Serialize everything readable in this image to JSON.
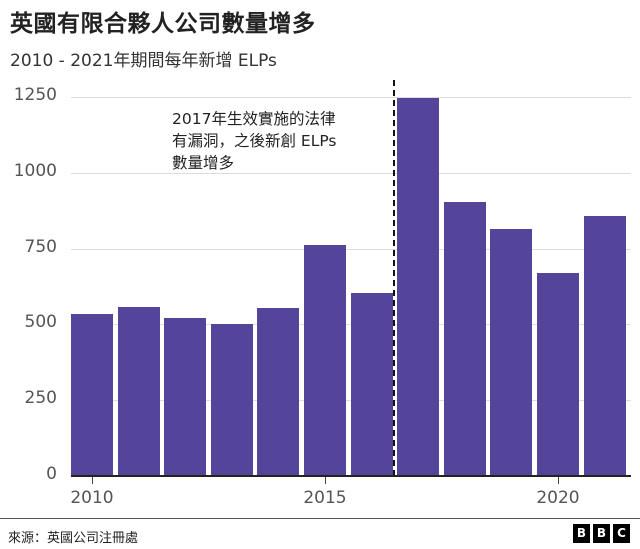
{
  "header": {
    "title": "英國有限合夥人公司數量增多",
    "subtitle": "2010 - 2021年期間每年新增 ELPs"
  },
  "annotation": {
    "lines": [
      "2017年生效實施的法律",
      "有漏洞，之後新創 ELPs",
      "數量增多"
    ]
  },
  "footer": {
    "source": "來源：英國公司注冊處",
    "logo": [
      "B",
      "B",
      "C"
    ]
  },
  "colors": {
    "bar": "#55459a",
    "marker": "#111111",
    "grid": "#dcdcdc"
  },
  "chart_data": {
    "type": "bar",
    "title": "英國有限合夥人公司數量增多",
    "subtitle": "2010 - 2021年期間每年新增 ELPs",
    "xlabel": "",
    "ylabel": "",
    "categories": [
      "2010",
      "2011",
      "2012",
      "2013",
      "2014",
      "2015",
      "2016",
      "2017",
      "2018",
      "2019",
      "2020",
      "2021"
    ],
    "values": [
      535,
      558,
      522,
      500,
      555,
      763,
      603,
      1248,
      905,
      816,
      668,
      859
    ],
    "ylim": [
      0,
      1250
    ],
    "yticks": [
      "0",
      "250",
      "500",
      "750",
      "1000",
      "1250"
    ],
    "xticks": [
      "2010",
      "2015",
      "2020"
    ],
    "grid": true,
    "legend": null,
    "annotations": [
      {
        "text": "2017年生效實施的法律有漏洞，之後新創 ELPs 數量增多",
        "position": "dashed vertical line between 2016 and 2017"
      }
    ],
    "source": "來源：英國公司注冊處"
  }
}
